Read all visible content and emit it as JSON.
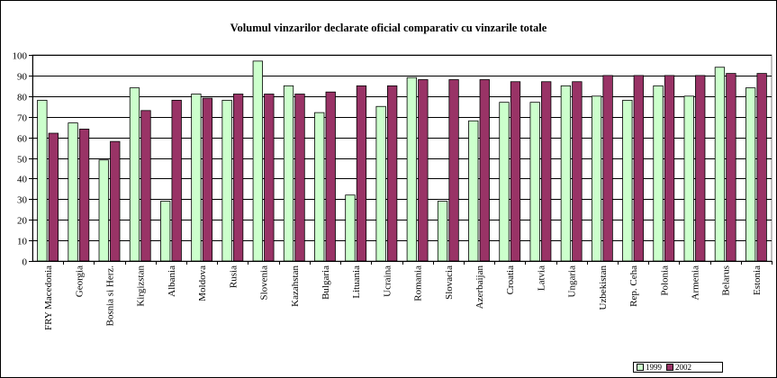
{
  "chart_data": {
    "type": "bar",
    "title": "Volumul vinzarilor declarate oficial comparativ cu vinzarile totale",
    "xlabel": "",
    "ylabel": "",
    "ylim": [
      0,
      100
    ],
    "yticks": [
      0,
      10,
      20,
      30,
      40,
      50,
      60,
      70,
      80,
      90,
      100
    ],
    "grid": true,
    "legend_position": "bottom-right",
    "categories": [
      "FRY Macedonia",
      "Georgia",
      "Bosnia si Herz.",
      "Kirgizstan",
      "Albania",
      "Moldova",
      "Rusia",
      "Slovenia",
      "Kazahstan",
      "Bulgaria",
      "Lituania",
      "Ucraina",
      "Romania",
      "Slovacia",
      "Azerbaijan",
      "Croatia",
      "Latvia",
      "Ungaria",
      "Uzbekistan",
      "Rep. Ceha",
      "Polonia",
      "Armenia",
      "Belarus",
      "Estonia"
    ],
    "series": [
      {
        "name": "1999",
        "color": "#ccffcc",
        "values": [
          78,
          67,
          49,
          84,
          29,
          81,
          78,
          97,
          85,
          72,
          32,
          75,
          89,
          29,
          68,
          77,
          77,
          85,
          80,
          78,
          85,
          80,
          94,
          84
        ]
      },
      {
        "name": "2002",
        "color": "#993366",
        "values": [
          62,
          64,
          58,
          73,
          78,
          79,
          81,
          81,
          81,
          82,
          85,
          85,
          88,
          88,
          88,
          87,
          87,
          87,
          90,
          90,
          90,
          90,
          91,
          91
        ]
      }
    ]
  }
}
